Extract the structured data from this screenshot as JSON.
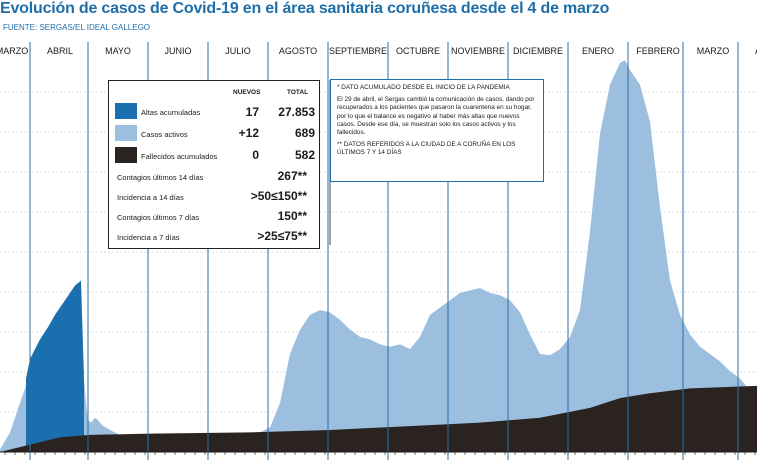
{
  "title": "Evolución de casos de Covid-19 en el área sanitaria coruñesa desde el 4 de marzo",
  "source": "FUENTE: SERGAS/EL IDEAL GALLEGO",
  "legend": {
    "col_nuevos": "NUEVOS",
    "col_total": "TOTAL",
    "rows": [
      {
        "label": "Altas acumuladas",
        "nuevos": "17",
        "total": "27.853",
        "color": "#1a6fae"
      },
      {
        "label": "Casos activos",
        "nuevos": "+12",
        "total": "689",
        "color": "#9dbfdf"
      },
      {
        "label": "Fallecidos acumulados",
        "nuevos": "0",
        "total": "582",
        "color": "#2a2320"
      }
    ],
    "stats": [
      {
        "label": "Contagios últimos 14 días",
        "value": "267**"
      },
      {
        "label": "Incidencia a 14 días",
        "value": ">50≤150**"
      },
      {
        "label": "Contagios últimos 7 días",
        "value": "150**"
      },
      {
        "label": "Incidencia a 7 días",
        "value": ">25≤75**"
      }
    ]
  },
  "note": {
    "line1": "* DATO ACUMULADO DESDE EL INICIO DE LA PANDEMIA",
    "line2": "El 29 de abril, el Sergas cambió la comunicación de casos, dando por recuperados a los pacientes que pasaron la cuarentena en su hogar, por lo que el balance es negativo al haber más altas que nuevos casos. Desde ese día, se muestran solo los casos activos y los fallecidos.",
    "line3": "** DATOS REFERIDOS A LA CIUDAD DE A CORUÑA EN LOS ÚLTIMOS 7 Y 14 DÍAS"
  },
  "chart_data": {
    "type": "area",
    "months": [
      "MARZO",
      "ABRIL",
      "MAYO",
      "JUNIO",
      "JULIO",
      "AGOSTO",
      "SEPTIEMBRE",
      "OCTUBRE",
      "NOVIEMBRE",
      "DICIEMBRE",
      "ENERO",
      "FEBRERO",
      "MARZO",
      "ABRIL"
    ],
    "series": [
      {
        "name": "Casos activos",
        "color": "#9dbfdf",
        "points": [
          [
            0,
            10
          ],
          [
            10,
            80
          ],
          [
            20,
            200
          ],
          [
            26,
            270
          ],
          [
            30,
            320
          ],
          [
            40,
            390
          ],
          [
            48,
            430
          ],
          [
            55,
            470
          ],
          [
            60,
            500
          ],
          [
            65,
            520
          ],
          [
            70,
            540
          ],
          [
            75,
            560
          ],
          [
            78,
            570
          ],
          [
            81,
            580
          ],
          [
            84,
            300
          ],
          [
            86,
            200
          ],
          [
            88,
            130
          ],
          [
            91,
            120
          ],
          [
            95,
            140
          ],
          [
            98,
            130
          ],
          [
            102,
            110
          ],
          [
            110,
            90
          ],
          [
            120,
            70
          ],
          [
            130,
            55
          ],
          [
            150,
            40
          ],
          [
            180,
            35
          ],
          [
            210,
            40
          ],
          [
            240,
            55
          ],
          [
            260,
            80
          ],
          [
            270,
            100
          ],
          [
            280,
            200
          ],
          [
            290,
            400
          ],
          [
            300,
            500
          ],
          [
            310,
            560
          ],
          [
            320,
            580
          ],
          [
            330,
            570
          ],
          [
            340,
            540
          ],
          [
            350,
            500
          ],
          [
            360,
            470
          ],
          [
            370,
            460
          ],
          [
            380,
            440
          ],
          [
            390,
            430
          ],
          [
            400,
            440
          ],
          [
            410,
            420
          ],
          [
            420,
            470
          ],
          [
            430,
            560
          ],
          [
            440,
            590
          ],
          [
            450,
            620
          ],
          [
            460,
            650
          ],
          [
            470,
            660
          ],
          [
            480,
            670
          ],
          [
            490,
            650
          ],
          [
            500,
            640
          ],
          [
            510,
            620
          ],
          [
            520,
            570
          ],
          [
            530,
            480
          ],
          [
            540,
            400
          ],
          [
            550,
            395
          ],
          [
            560,
            420
          ],
          [
            570,
            470
          ],
          [
            580,
            580
          ],
          [
            590,
            900
          ],
          [
            600,
            1300
          ],
          [
            610,
            1500
          ],
          [
            620,
            1590
          ],
          [
            625,
            1600
          ],
          [
            630,
            1560
          ],
          [
            640,
            1500
          ],
          [
            650,
            1350
          ],
          [
            660,
            1000
          ],
          [
            670,
            700
          ],
          [
            680,
            560
          ],
          [
            690,
            480
          ],
          [
            700,
            430
          ],
          [
            710,
            400
          ],
          [
            720,
            370
          ],
          [
            730,
            330
          ],
          [
            740,
            300
          ],
          [
            750,
            250
          ],
          [
            757,
            180
          ]
        ]
      },
      {
        "name": "Altas acumuladas",
        "color": "#1a6fae",
        "points": [
          [
            26,
            300
          ],
          [
            30,
            380
          ],
          [
            40,
            460
          ],
          [
            48,
            510
          ],
          [
            55,
            560
          ],
          [
            60,
            590
          ],
          [
            65,
            620
          ],
          [
            70,
            650
          ],
          [
            75,
            680
          ],
          [
            78,
            690
          ],
          [
            81,
            700
          ],
          [
            84,
            300
          ]
        ]
      },
      {
        "name": "Fallecidos acumulados",
        "color": "#2a2320",
        "points": [
          [
            0,
            0
          ],
          [
            30,
            30
          ],
          [
            60,
            60
          ],
          [
            90,
            70
          ],
          [
            150,
            75
          ],
          [
            250,
            80
          ],
          [
            330,
            90
          ],
          [
            380,
            100
          ],
          [
            430,
            110
          ],
          [
            480,
            120
          ],
          [
            540,
            140
          ],
          [
            590,
            180
          ],
          [
            620,
            220
          ],
          [
            650,
            240
          ],
          [
            690,
            260
          ],
          [
            757,
            270
          ]
        ]
      }
    ]
  }
}
